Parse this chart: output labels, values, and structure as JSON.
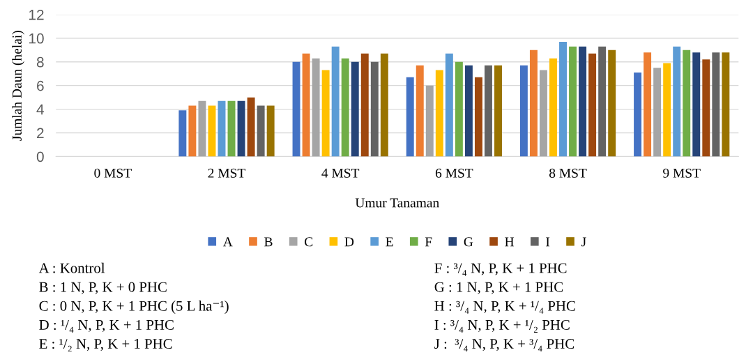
{
  "chart_data": {
    "type": "bar",
    "xlabel": "Umur Tanaman",
    "ylabel": "Jumlah Daun (helai)",
    "categories": [
      "0 MST",
      "2 MST",
      "4 MST",
      "6 MST",
      "8 MST",
      "9 MST"
    ],
    "ylim": [
      0,
      12
    ],
    "yticks": [
      0,
      2,
      4,
      6,
      8,
      10,
      12
    ],
    "grid": "y",
    "legend": "bottom",
    "series": [
      {
        "name": "A",
        "color": "#4472c4",
        "values": [
          0,
          3.9,
          8.0,
          6.7,
          7.7,
          7.1
        ]
      },
      {
        "name": "B",
        "color": "#ed7d31",
        "values": [
          0,
          4.3,
          8.7,
          7.7,
          9.0,
          8.8
        ]
      },
      {
        "name": "C",
        "color": "#a5a5a5",
        "values": [
          0,
          4.7,
          8.3,
          6.0,
          7.3,
          7.5
        ]
      },
      {
        "name": "D",
        "color": "#ffc000",
        "values": [
          0,
          4.3,
          7.3,
          7.3,
          8.3,
          7.9
        ]
      },
      {
        "name": "E",
        "color": "#5b9bd5",
        "values": [
          0,
          4.7,
          9.3,
          8.7,
          9.7,
          9.3
        ]
      },
      {
        "name": "F",
        "color": "#70ad47",
        "values": [
          0,
          4.7,
          8.3,
          8.0,
          9.3,
          9.0
        ]
      },
      {
        "name": "G",
        "color": "#264478",
        "values": [
          0,
          4.7,
          8.0,
          7.7,
          9.3,
          8.8
        ]
      },
      {
        "name": "H",
        "color": "#9e480e",
        "values": [
          0,
          5.0,
          8.7,
          6.7,
          8.7,
          8.2
        ]
      },
      {
        "name": "I",
        "color": "#636363",
        "values": [
          0,
          4.3,
          8.0,
          7.7,
          9.3,
          8.8
        ]
      },
      {
        "name": "J",
        "color": "#997300",
        "values": [
          0,
          4.3,
          8.7,
          7.7,
          9.0,
          8.8
        ]
      }
    ],
    "annotations": [
      "A : Kontrol",
      "B : 1 N, P, K + 0 PHC",
      "C : 0 N, P, K + 1 PHC (5 L ha⁻¹)",
      "D : ¹/₄ N, P, K + 1 PHC",
      "E : ¹/₂ N, P, K + 1 PHC",
      "F : ³/₄ N, P, K + 1 PHC",
      "G : 1 N, P, K + 1 PHC",
      "H : ³/₄ N, P, K + ¹/₄ PHC",
      "I : ³/₄ N, P, K + ¹/₂ PHC",
      "J :  ³/₄ N, P, K + ³/₄ PHC"
    ]
  }
}
